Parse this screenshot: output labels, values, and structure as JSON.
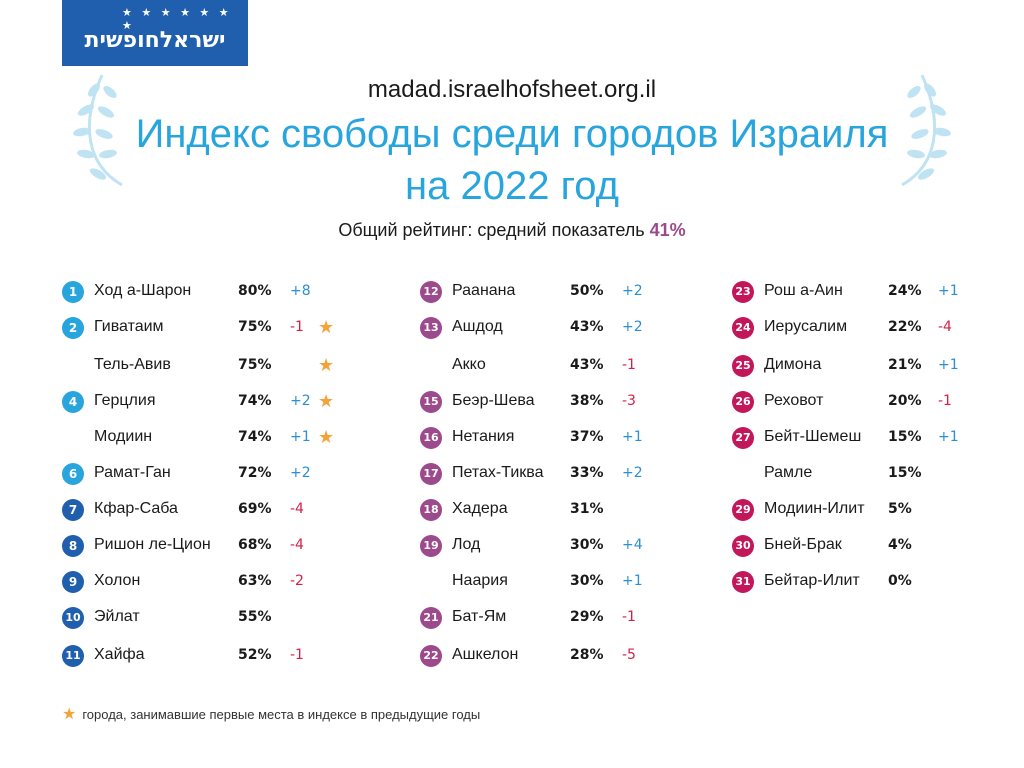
{
  "logo": {
    "text": "ישראלחופשית",
    "stars": "★ ★ ★ ★ ★ ★ ★"
  },
  "url": "madad.israelhofsheet.org.il",
  "title_line1": "Индекс свободы среди городов Израиля",
  "title_line2": "на 2022 год",
  "subtitle_prefix": "Общий рейтинг: средний показатель ",
  "subtitle_value": "41%",
  "colors": {
    "blue": "#29a5de",
    "dark_blue": "#1f5fae",
    "purple": "#9c4a8c",
    "magenta": "#c2185b",
    "star": "#f4a23a",
    "pos": "#2a8fd6",
    "neg": "#d6204a"
  },
  "columns": [
    [
      {
        "rank": "1",
        "name": "Ход а-Шарон",
        "pct": "80%",
        "change": "+8",
        "star": false
      },
      {
        "rank": "2",
        "name": "Гиватаим",
        "pct": "75%",
        "change": "-1",
        "star": true
      },
      {
        "rank": "",
        "name": "Тель-Авив",
        "pct": "75%",
        "change": "",
        "star": true
      },
      {
        "rank": "4",
        "name": "Герцлия",
        "pct": "74%",
        "change": "+2",
        "star": true
      },
      {
        "rank": "",
        "name": "Модиин",
        "pct": "74%",
        "change": "+1",
        "star": true
      },
      {
        "rank": "6",
        "name": "Рамат-Ган",
        "pct": "72%",
        "change": "+2",
        "star": false
      },
      {
        "rank": "7",
        "name": "Кфар-Саба",
        "pct": "69%",
        "change": "-4",
        "star": false
      },
      {
        "rank": "8",
        "name": "Ришон ле-Цион",
        "pct": "68%",
        "change": "-4",
        "star": false
      },
      {
        "rank": "9",
        "name": "Холон",
        "pct": "63%",
        "change": "-2",
        "star": false
      },
      {
        "rank": "10",
        "name": "Эйлат",
        "pct": "55%",
        "change": "",
        "star": false
      },
      {
        "rank": "11",
        "name": "Хайфа",
        "pct": "52%",
        "change": "-1",
        "star": false
      }
    ],
    [
      {
        "rank": "12",
        "name": "Раанана",
        "pct": "50%",
        "change": "+2",
        "star": false
      },
      {
        "rank": "13",
        "name": "Ашдод",
        "pct": "43%",
        "change": "+2",
        "star": false
      },
      {
        "rank": "",
        "name": "Акко",
        "pct": "43%",
        "change": "-1",
        "star": false
      },
      {
        "rank": "15",
        "name": "Беэр-Шева",
        "pct": "38%",
        "change": "-3",
        "star": false
      },
      {
        "rank": "16",
        "name": "Нетания",
        "pct": "37%",
        "change": "+1",
        "star": false
      },
      {
        "rank": "17",
        "name": "Петах-Тиква",
        "pct": "33%",
        "change": "+2",
        "star": false
      },
      {
        "rank": "18",
        "name": "Хадера",
        "pct": "31%",
        "change": "",
        "star": false
      },
      {
        "rank": "19",
        "name": "Лод",
        "pct": "30%",
        "change": "+4",
        "star": false
      },
      {
        "rank": "",
        "name": "Наария",
        "pct": "30%",
        "change": "+1",
        "star": false
      },
      {
        "rank": "21",
        "name": "Бат-Ям",
        "pct": "29%",
        "change": "-1",
        "star": false
      },
      {
        "rank": "22",
        "name": "Ашкелон",
        "pct": "28%",
        "change": "-5",
        "star": false
      }
    ],
    [
      {
        "rank": "23",
        "name": "Рош а-Аин",
        "pct": "24%",
        "change": "+1",
        "star": false
      },
      {
        "rank": "24",
        "name": "Иерусалим",
        "pct": "22%",
        "change": "-4",
        "star": false
      },
      {
        "rank": "25",
        "name": "Димона",
        "pct": "21%",
        "change": "+1",
        "star": false
      },
      {
        "rank": "26",
        "name": "Реховот",
        "pct": "20%",
        "change": "-1",
        "star": false
      },
      {
        "rank": "27",
        "name": "Бейт-Шемеш",
        "pct": "15%",
        "change": "+1",
        "star": false
      },
      {
        "rank": "",
        "name": "Рамле",
        "pct": "15%",
        "change": "",
        "star": false
      },
      {
        "rank": "29",
        "name": "Модиин-Илит",
        "pct": "5%",
        "change": "",
        "star": false
      },
      {
        "rank": "30",
        "name": "Бней-Брак",
        "pct": "4%",
        "change": "",
        "star": false
      },
      {
        "rank": "31",
        "name": "Бейтар-Илит",
        "pct": "0%",
        "change": "",
        "star": false
      }
    ]
  ],
  "legend": "города, занимавшие первые места в индексе в предыдущие годы"
}
